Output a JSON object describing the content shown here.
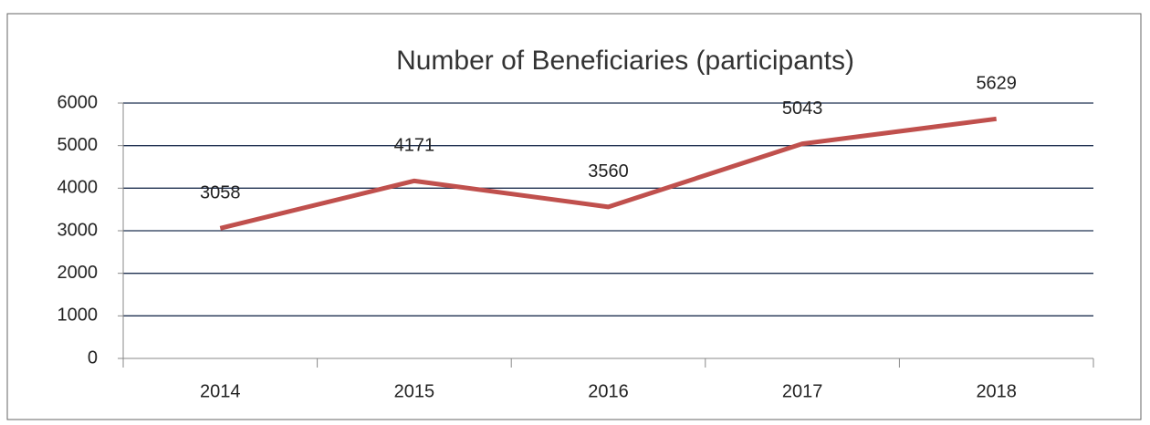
{
  "chart_data": {
    "type": "line",
    "title": "Number of Beneficiaries (participants)",
    "categories": [
      "2014",
      "2015",
      "2016",
      "2017",
      "2018"
    ],
    "values": [
      3058,
      4171,
      3560,
      5043,
      5629
    ],
    "color": "#c0504d",
    "ylim": [
      0,
      6000
    ],
    "yticks": [
      0,
      1000,
      2000,
      3000,
      4000,
      5000,
      6000
    ],
    "grid": true
  }
}
